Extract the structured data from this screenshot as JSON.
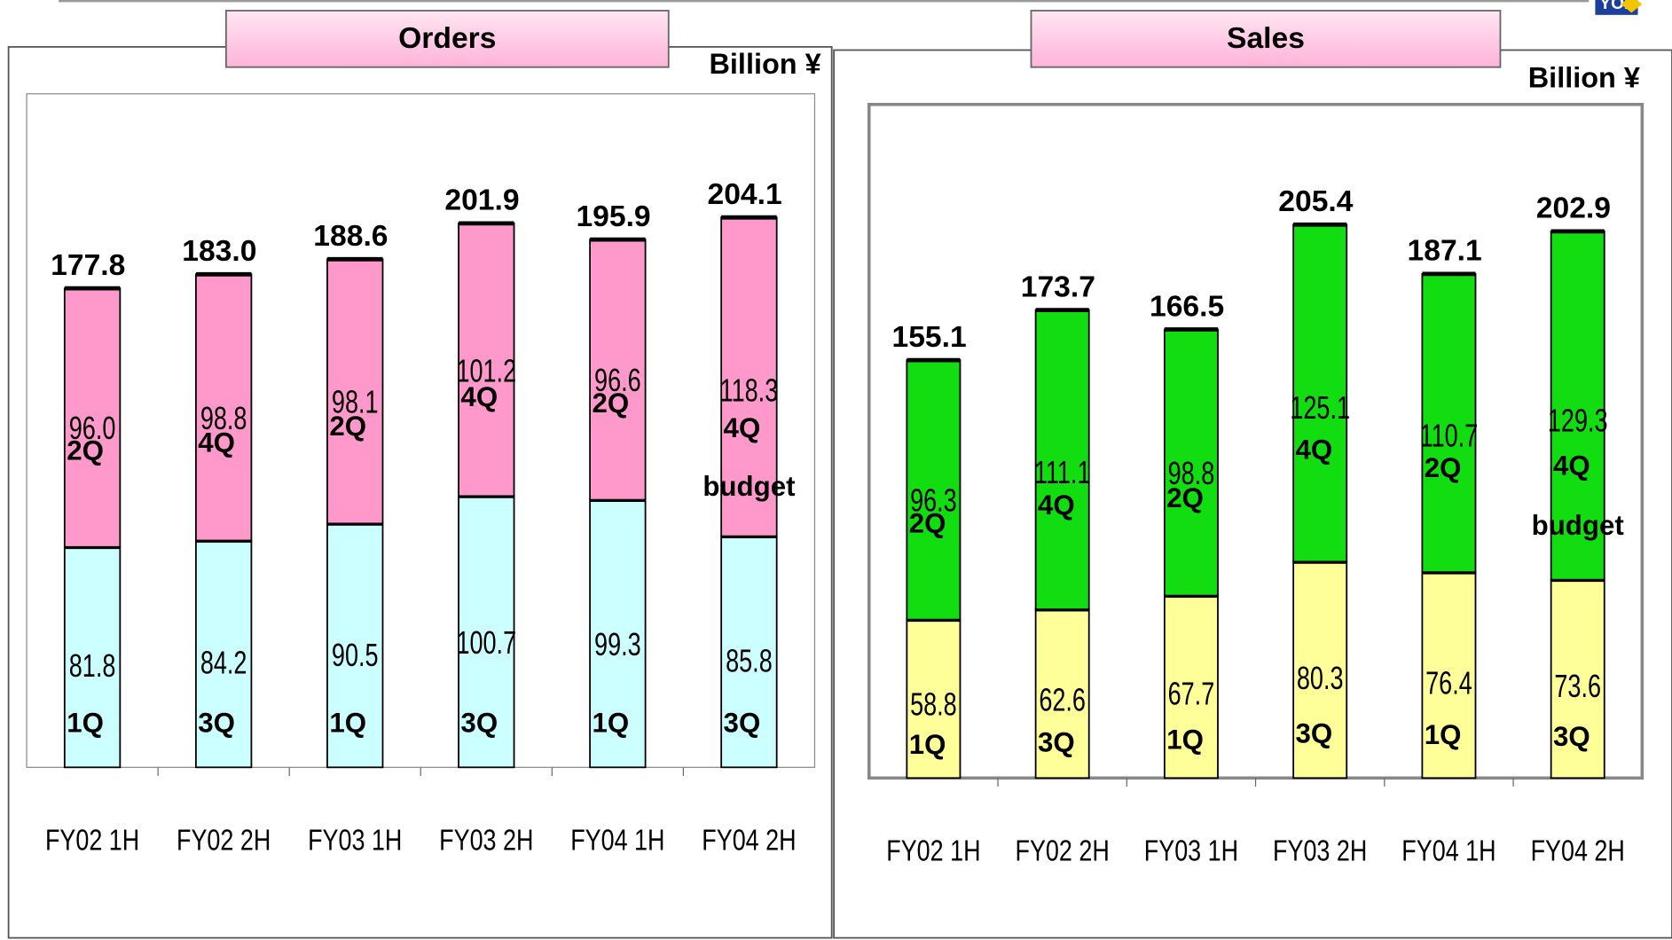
{
  "logo": "YOKOGAWA",
  "chart_data": [
    {
      "type": "bar",
      "stacked": true,
      "title": "Orders",
      "unit": "Billion ¥",
      "categories": [
        "FY02  1H",
        "FY02  2H",
        "FY03  1H",
        "FY03  2H",
        "FY04 1H",
        "FY04 2H"
      ],
      "series": [
        {
          "color": "#ccffff",
          "values": [
            81.8,
            84.2,
            90.5,
            100.7,
            99.3,
            85.8
          ],
          "value_labels": [
            "81.8",
            "84.2",
            "90.5",
            "100.7",
            "99.3",
            "85.8"
          ],
          "quarter_labels": [
            "1Q",
            "3Q",
            "1Q",
            "3Q",
            "1Q",
            "3Q"
          ]
        },
        {
          "color": "#ff99cc",
          "values": [
            96.0,
            98.8,
            98.1,
            101.2,
            96.6,
            118.3
          ],
          "value_labels": [
            "96.0",
            "98.8",
            "98.1",
            "101.2",
            "96.6",
            "118.3"
          ],
          "quarter_labels": [
            "2Q",
            "4Q",
            "2Q",
            "4Q",
            "2Q",
            "4Q"
          ]
        }
      ],
      "totals": [
        177.8,
        183.0,
        188.6,
        201.9,
        195.9,
        204.1
      ],
      "total_labels": [
        "177.8",
        "183.0",
        "188.6",
        "201.9",
        "195.9",
        "204.1"
      ],
      "annotation": "budget",
      "ylim": [
        0,
        250
      ]
    },
    {
      "type": "bar",
      "stacked": true,
      "title": "Sales",
      "unit": "Billion ¥",
      "categories": [
        "FY02   1H",
        "FY02   2H",
        "FY03   1H",
        "FY03   2H",
        "FY04 1H",
        "FY04 2H"
      ],
      "series": [
        {
          "color": "#ffff99",
          "values": [
            58.8,
            62.6,
            67.7,
            80.3,
            76.4,
            73.6
          ],
          "value_labels": [
            "58.8",
            "62.6",
            "67.7",
            "80.3",
            "76.4",
            "73.6"
          ],
          "quarter_labels": [
            "1Q",
            "3Q",
            "1Q",
            "3Q",
            "1Q",
            "3Q"
          ]
        },
        {
          "color": "#11dd11",
          "values": [
            96.3,
            111.1,
            98.8,
            125.1,
            110.7,
            129.3
          ],
          "value_labels": [
            "96.3",
            "111.1",
            "98.8",
            "125.1",
            "110.7",
            "129.3"
          ],
          "quarter_labels": [
            "2Q",
            "4Q",
            "2Q",
            "4Q",
            "2Q",
            "4Q"
          ]
        }
      ],
      "totals": [
        155.1,
        173.7,
        166.5,
        205.4,
        187.1,
        202.9
      ],
      "total_labels": [
        "155.1",
        "173.7",
        "166.5",
        "205.4",
        "187.1",
        "202.9"
      ],
      "annotation": "budget",
      "ylim": [
        0,
        250
      ]
    }
  ]
}
